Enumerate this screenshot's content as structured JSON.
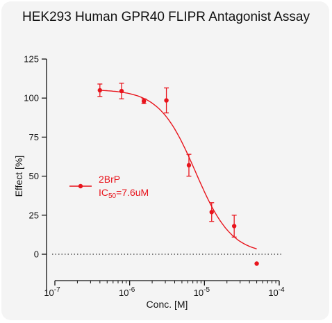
{
  "chart_data": {
    "type": "scatter",
    "title": "HEK293 Human GPR40 FLIPR Antagonist Assay",
    "xlabel": "Conc. [M]",
    "ylabel": "Effect  [%]",
    "x_scale": "log",
    "xlim": [
      1e-07,
      0.0001
    ],
    "ylim": [
      -25,
      125
    ],
    "x_ticks": [
      {
        "base": "10",
        "exp": "-7",
        "value": 1e-07
      },
      {
        "base": "10",
        "exp": "-6",
        "value": 1e-06
      },
      {
        "base": "10",
        "exp": "-5",
        "value": 1e-05
      },
      {
        "base": "10",
        "exp": "-4",
        "value": 0.0001
      }
    ],
    "y_ticks": [
      "0",
      "25",
      "50",
      "75",
      "100",
      "125"
    ],
    "y_tick_values": [
      0,
      25,
      50,
      75,
      100,
      125
    ],
    "zero_line": "dotted",
    "color": "#e8141c",
    "series": [
      {
        "name": "2BrP",
        "points": [
          {
            "x": 4e-07,
            "y": 105,
            "err": 4
          },
          {
            "x": 7.8e-07,
            "y": 104.5,
            "err": 5
          },
          {
            "x": 1.55e-06,
            "y": 98,
            "err": 1.5
          },
          {
            "x": 3.1e-06,
            "y": 98.5,
            "err": 8
          },
          {
            "x": 6.2e-06,
            "y": 57,
            "err": 7
          },
          {
            "x": 1.25e-05,
            "y": 27,
            "err": 6
          },
          {
            "x": 2.5e-05,
            "y": 18,
            "err": 7
          },
          {
            "x": 5e-05,
            "y": -6,
            "err": 0
          }
        ],
        "fit": {
          "model": "4PL",
          "top": 105.5,
          "bottom": 0,
          "ic50": 7.6e-06,
          "hill": 1.8
        }
      }
    ],
    "legend": {
      "position": "center-left",
      "name": "2BrP",
      "ic50_prefix": "IC",
      "ic50_sub": "50",
      "ic50_suffix": "=7.6uM"
    }
  }
}
